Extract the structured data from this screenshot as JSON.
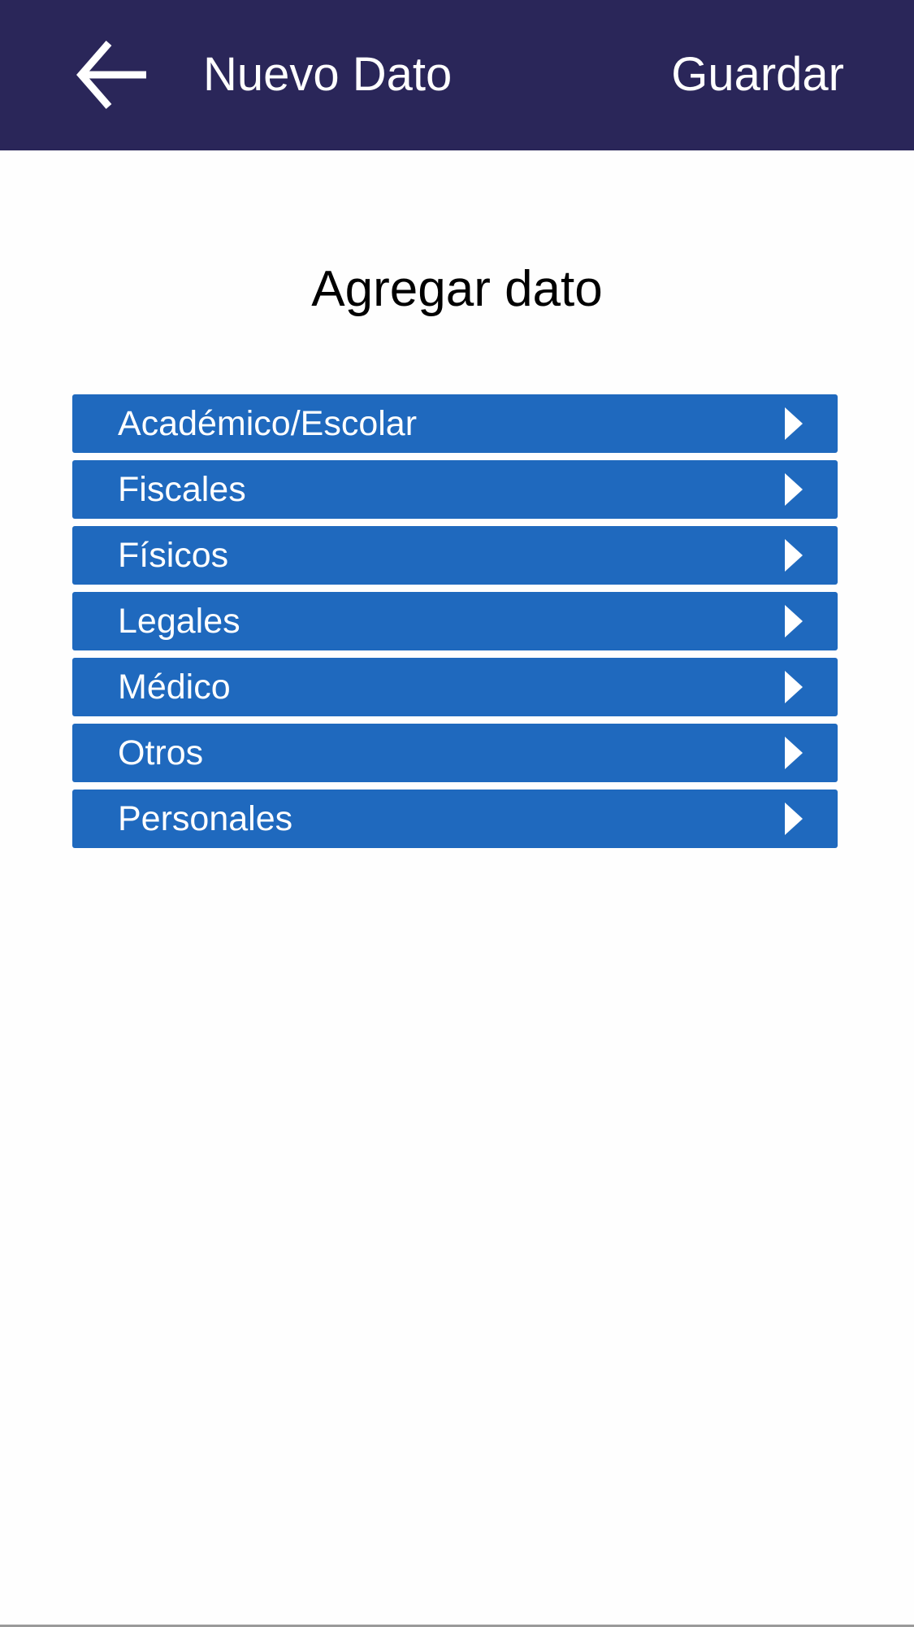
{
  "header": {
    "back_icon": "arrow-left-icon",
    "title": "Nuevo Dato",
    "save_label": "Guardar",
    "background": "#2a2659"
  },
  "main": {
    "title": "Agregar dato",
    "accent": "#1f69be",
    "categories": [
      {
        "label": "Académico/Escolar"
      },
      {
        "label": "Fiscales"
      },
      {
        "label": "Físicos"
      },
      {
        "label": "Legales"
      },
      {
        "label": "Médico"
      },
      {
        "label": "Otros"
      },
      {
        "label": "Personales"
      }
    ]
  }
}
